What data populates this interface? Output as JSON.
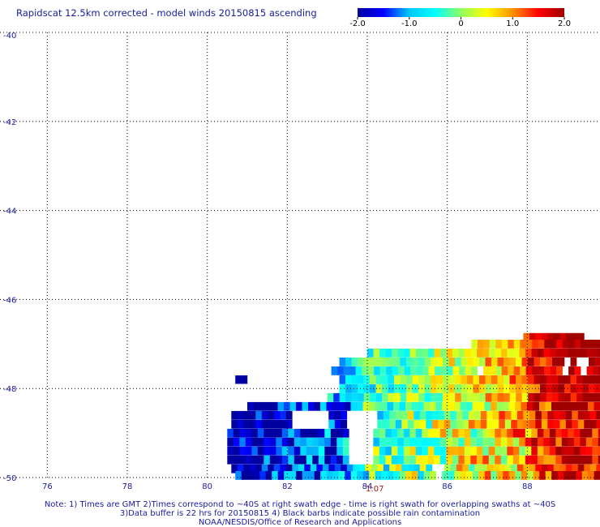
{
  "header": {
    "title": "Rapidscat 12.5km corrected - model winds 20150815 ascending"
  },
  "colorbar": {
    "min": -2.0,
    "max": 2.0,
    "tick_values": [
      -2.0,
      -1.0,
      0,
      1.0,
      2.0
    ],
    "tick_labels": [
      "-2.0",
      "-1.0",
      "0",
      "1.0",
      "2.0"
    ],
    "stops": [
      "#0000a0",
      "#0000ff",
      "#00c8ff",
      "#00ffff",
      "#90ff60",
      "#ffff00",
      "#ff9000",
      "#ff0000",
      "#a00000"
    ]
  },
  "chart_data": {
    "type": "heatmap",
    "title": "Rapidscat 12.5km corrected - model winds 20150815 ascending",
    "xlabel": "",
    "ylabel": "",
    "xlim": [
      75,
      90
    ],
    "ylim": [
      -50,
      -40
    ],
    "x_ticks": [
      76,
      78,
      80,
      82,
      84,
      86,
      88
    ],
    "x_tick_labels": [
      "76",
      "78",
      "80",
      "82",
      "84",
      "86",
      "88"
    ],
    "y_ticks": [
      -40,
      -42,
      -44,
      -46,
      -48,
      -50
    ],
    "y_tick_labels": [
      "-40",
      "-42",
      "-44",
      "-46",
      "-48",
      "-50"
    ],
    "grid": true,
    "value_range": [
      -2.0,
      2.0
    ],
    "swath_rows": [
      {
        "lat": -46.85,
        "start": 87.9,
        "end": 89.4,
        "slope": 0.8,
        "noise": 0.35
      },
      {
        "lat": -47.0,
        "start": 86.6,
        "end": 89.9,
        "slope": 0.7,
        "noise": 0.55
      },
      {
        "lat": -47.2,
        "start": 84.0,
        "end": 89.9,
        "slope": 0.6,
        "noise": 0.6
      },
      {
        "lat": -47.4,
        "start": 83.3,
        "end": 89.9,
        "slope": 0.55,
        "noise": 0.6
      },
      {
        "lat": -47.6,
        "start": 83.1,
        "end": 89.9,
        "slope": 0.55,
        "noise": 0.6
      },
      {
        "lat": -47.8,
        "start": 83.3,
        "end": 89.9,
        "slope": 0.5,
        "noise": 0.6
      },
      {
        "lat": -48.0,
        "start": 83.3,
        "end": 89.9,
        "slope": 0.5,
        "noise": 0.65
      },
      {
        "lat": -48.2,
        "start": 83.0,
        "end": 89.9,
        "slope": 0.45,
        "noise": 0.7
      },
      {
        "lat": -48.4,
        "start": 81.0,
        "end": 89.9,
        "slope": 0.4,
        "noise": 0.8
      },
      {
        "lat": -48.6,
        "start": 80.6,
        "end": 89.9,
        "slope": 0.4,
        "noise": 0.85
      },
      {
        "lat": -48.8,
        "start": 80.6,
        "end": 89.9,
        "slope": 0.4,
        "noise": 0.85
      },
      {
        "lat": -49.0,
        "start": 80.5,
        "end": 89.9,
        "slope": 0.35,
        "noise": 0.9
      },
      {
        "lat": -49.2,
        "start": 80.5,
        "end": 89.9,
        "slope": 0.35,
        "noise": 0.9
      },
      {
        "lat": -49.4,
        "start": 80.5,
        "end": 89.9,
        "slope": 0.3,
        "noise": 0.9
      },
      {
        "lat": -49.6,
        "start": 80.5,
        "end": 89.9,
        "slope": 0.3,
        "noise": 0.9
      },
      {
        "lat": -49.8,
        "start": 80.6,
        "end": 89.9,
        "slope": 0.25,
        "noise": 0.9
      },
      {
        "lat": -49.95,
        "start": 80.7,
        "end": 89.9,
        "slope": 0.25,
        "noise": 0.9
      }
    ],
    "isolated_cells": [
      {
        "lon": 80.7,
        "lat": -47.8,
        "value": -2.0
      }
    ],
    "gaps": [
      {
        "lon": [
          83.4,
          84.1
        ],
        "lat": [
          -48.6,
          -49.7
        ]
      },
      {
        "lon": [
          82.0,
          83.0
        ],
        "lat": [
          -48.6,
          -48.9
        ]
      },
      {
        "lon": [
          86.7,
          86.9
        ],
        "lat": [
          -47.5,
          -47.7
        ]
      },
      {
        "lon": [
          88.8,
          89.0
        ],
        "lat": [
          -47.4,
          -47.6
        ]
      },
      {
        "lon": [
          89.2,
          89.4
        ],
        "lat": [
          -47.4,
          -47.6
        ]
      },
      {
        "lon": [
          85.6,
          85.8
        ],
        "lat": [
          -49.8,
          -50.0
        ]
      }
    ]
  },
  "annotations": {
    "time_label": "1:07",
    "time_label_lon": 84.0
  },
  "footer": {
    "line1": "Note: 1) Times are GMT 2)Times correspond to ~40S at right swath edge - time is right swath for overlapping swaths at ~40S",
    "line2": "3)Data buffer is 22 hrs for 20150815 4) Black barbs indicate possible rain contamination",
    "line3": "NOAA/NESDIS/Office of Research and Applications"
  }
}
